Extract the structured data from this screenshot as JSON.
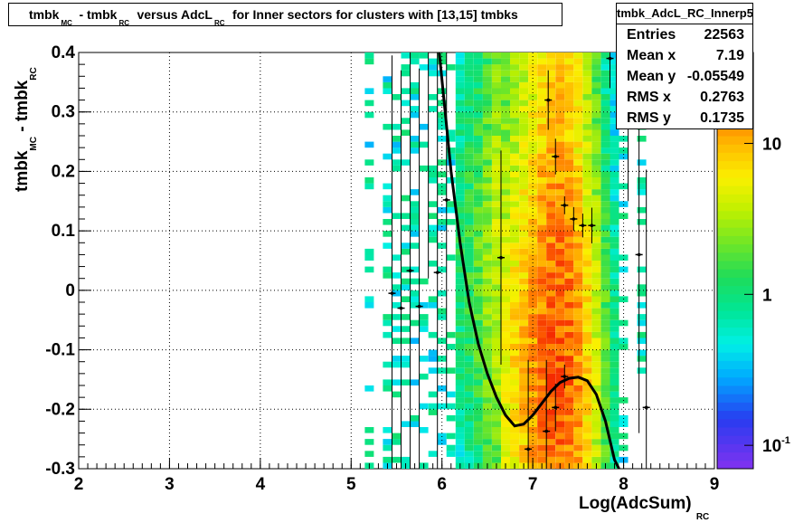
{
  "title": {
    "parts": [
      {
        "text": "tmbk",
        "sub": "MC"
      },
      {
        "text": " - tmbk",
        "sub": "RC"
      },
      {
        "text": " versus AdcL",
        "sub": "RC"
      },
      {
        "text": " for Inner sectors for clusters with [13,15] tmbks",
        "sub": ""
      }
    ]
  },
  "stats": {
    "name": "tmbk_AdcL_RC_Innerp5",
    "entries_label": "Entries",
    "entries": "22563",
    "meanx_label": "Mean x",
    "meanx": "7.19",
    "meany_label": "Mean y",
    "meany": "-0.05549",
    "rmsx_label": "RMS x",
    "rmsx": "0.2763",
    "rmsy_label": "RMS y",
    "rmsy": "0.1735"
  },
  "axes": {
    "xlabel_main": "Log(AdcSum)",
    "xlabel_sub": "RC",
    "ylabel_parts": [
      {
        "text": "tmbk",
        "sub": "MC"
      },
      {
        "text": " - tmbk",
        "sub": "RC"
      }
    ]
  },
  "colorbar": {
    "labels": [
      {
        "text": "10",
        "sup": "",
        "value": 10
      },
      {
        "text": "1",
        "sup": "",
        "value": 1
      },
      {
        "text": "10",
        "sup": "-1",
        "value": 0.1
      }
    ],
    "range": [
      0.07,
      40
    ],
    "log": true
  },
  "chart_data": {
    "type": "heatmap",
    "xlim": [
      2,
      9
    ],
    "ylim": [
      -0.3,
      0.4
    ],
    "xticks": [
      2,
      3,
      4,
      5,
      6,
      7,
      8,
      9
    ],
    "yticks": [
      -0.3,
      -0.2,
      -0.1,
      0,
      0.1,
      0.2,
      0.3,
      0.4
    ],
    "ytick_labels": [
      "-0.3",
      "-0.2",
      "-0.1",
      "0",
      "0.1",
      "0.2",
      "0.3",
      "0.4"
    ],
    "heatmap_profile": {
      "x_bin_width": 0.1,
      "y_bin_width": 0.01,
      "columns": [
        {
          "x": 5.2,
          "peak": 0.3
        },
        {
          "x": 5.4,
          "peak": 0.4
        },
        {
          "x": 5.5,
          "peak": 0.45
        },
        {
          "x": 5.6,
          "peak": 0.55
        },
        {
          "x": 5.7,
          "peak": 0.6
        },
        {
          "x": 5.8,
          "peak": 0.65
        },
        {
          "x": 5.9,
          "peak": 0.75
        },
        {
          "x": 6.0,
          "peak": 0.85
        },
        {
          "x": 6.1,
          "peak": 0.95
        },
        {
          "x": 6.2,
          "peak": 1.2
        },
        {
          "x": 6.3,
          "peak": 1.5
        },
        {
          "x": 6.4,
          "peak": 2.0
        },
        {
          "x": 6.5,
          "peak": 2.8
        },
        {
          "x": 6.6,
          "peak": 4.0
        },
        {
          "x": 6.7,
          "peak": 5.5
        },
        {
          "x": 6.8,
          "peak": 7.5
        },
        {
          "x": 6.9,
          "peak": 10.0
        },
        {
          "x": 7.0,
          "peak": 13.0
        },
        {
          "x": 7.1,
          "peak": 17.0
        },
        {
          "x": 7.2,
          "peak": 20.0
        },
        {
          "x": 7.3,
          "peak": 21.0
        },
        {
          "x": 7.4,
          "peak": 18.0
        },
        {
          "x": 7.5,
          "peak": 13.0
        },
        {
          "x": 7.6,
          "peak": 8.0
        },
        {
          "x": 7.7,
          "peak": 4.5
        },
        {
          "x": 7.8,
          "peak": 2.0
        },
        {
          "x": 7.9,
          "peak": 1.0
        },
        {
          "x": 8.0,
          "peak": 0.6
        },
        {
          "x": 8.2,
          "peak": 0.3
        }
      ]
    },
    "profile_points": [
      {
        "x": 5.45,
        "y": -0.005,
        "ey": 0.4
      },
      {
        "x": 5.55,
        "y": -0.03,
        "ey": 0.4
      },
      {
        "x": 5.65,
        "y": 0.033,
        "ey": 0.4
      },
      {
        "x": 5.75,
        "y": -0.027,
        "ey": 0.4
      },
      {
        "x": 5.85,
        "y": 0.42,
        "ey": 0.4
      },
      {
        "x": 5.95,
        "y": 0.03,
        "ey": 0.4
      },
      {
        "x": 6.05,
        "y": 0.152,
        "ey": 0.35
      },
      {
        "x": 6.65,
        "y": 0.055,
        "ey": 0.18
      },
      {
        "x": 6.95,
        "y": -0.267,
        "ey": 0.15
      },
      {
        "x": 7.15,
        "y": -0.237,
        "ey": 0.12
      },
      {
        "x": 7.17,
        "y": 0.32,
        "ey": 0.05
      },
      {
        "x": 7.25,
        "y": -0.197,
        "ey": 0.04
      },
      {
        "x": 7.25,
        "y": 0.225,
        "ey": 0.03
      },
      {
        "x": 7.35,
        "y": 0.143,
        "ey": 0.015
      },
      {
        "x": 7.35,
        "y": -0.145,
        "ey": 0.02
      },
      {
        "x": 7.45,
        "y": 0.12,
        "ey": 0.02
      },
      {
        "x": 7.55,
        "y": 0.109,
        "ey": 0.02
      },
      {
        "x": 7.65,
        "y": 0.109,
        "ey": 0.03
      },
      {
        "x": 7.85,
        "y": 0.39,
        "ey": 0.05
      },
      {
        "x": 8.05,
        "y": 0.35,
        "ey": 0.2
      },
      {
        "x": 8.17,
        "y": 0.06,
        "ey": 0.3
      },
      {
        "x": 8.25,
        "y": -0.197,
        "ey": 0.4
      }
    ],
    "fit_curve": {
      "x": [
        5.97,
        6.1,
        6.2,
        6.3,
        6.4,
        6.5,
        6.6,
        6.7,
        6.8,
        6.9,
        7.0,
        7.1,
        7.2,
        7.3,
        7.4,
        7.5,
        7.6,
        7.7,
        7.8,
        7.9,
        7.95
      ],
      "y": [
        0.4,
        0.2,
        0.08,
        -0.02,
        -0.09,
        -0.14,
        -0.18,
        -0.21,
        -0.228,
        -0.225,
        -0.21,
        -0.19,
        -0.17,
        -0.155,
        -0.148,
        -0.146,
        -0.152,
        -0.175,
        -0.22,
        -0.285,
        -0.3
      ]
    }
  }
}
